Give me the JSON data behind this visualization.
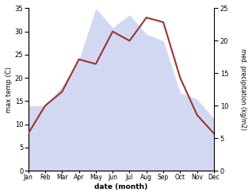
{
  "months": [
    "Jan",
    "Feb",
    "Mar",
    "Apr",
    "May",
    "Jun",
    "Jul",
    "Aug",
    "Sep",
    "Oct",
    "Nov",
    "Dec"
  ],
  "temperature": [
    8,
    14,
    17,
    24,
    23,
    30,
    28,
    33,
    32,
    20,
    12,
    8
  ],
  "precipitation": [
    10,
    10,
    13,
    17,
    25,
    22,
    24,
    21,
    20,
    12,
    11,
    8
  ],
  "temp_color": "#993333",
  "precip_color": "#b0b8e8",
  "left_ylabel": "max temp (C)",
  "right_ylabel": "med. precipitation (kg/m2)",
  "xlabel": "date (month)",
  "ylim_left": [
    0,
    35
  ],
  "ylim_right": [
    0,
    25
  ],
  "yticks_left": [
    0,
    5,
    10,
    15,
    20,
    25,
    30,
    35
  ],
  "yticks_right": [
    0,
    5,
    10,
    15,
    20,
    25
  ],
  "background_color": "#ffffff",
  "temp_linewidth": 1.5,
  "precip_alpha": 0.55
}
